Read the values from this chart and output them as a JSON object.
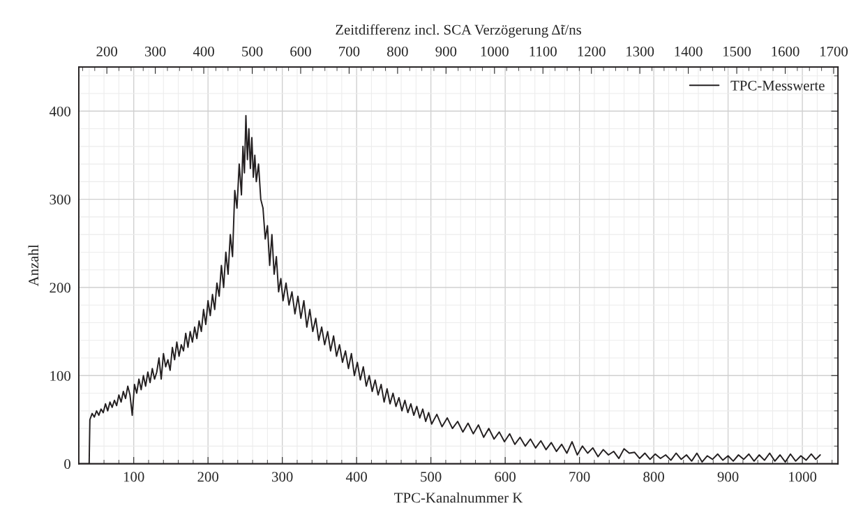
{
  "chart_data": {
    "type": "line",
    "xlabel": "TPC-Kanalnummer K",
    "ylabel": "Anzahl",
    "x2label": "Zeitdifferenz incl. SCA Verzögerung Δ̃t/ns",
    "xlim": [
      26,
      1048
    ],
    "ylim": [
      0,
      450
    ],
    "x2lim": [
      142,
      1709
    ],
    "xticks": [
      100,
      200,
      300,
      400,
      500,
      600,
      700,
      800,
      900,
      1000
    ],
    "yticks": [
      0,
      100,
      200,
      300,
      400
    ],
    "x2ticks": [
      200,
      300,
      400,
      500,
      600,
      700,
      800,
      900,
      1000,
      1100,
      1200,
      1300,
      1400,
      1500,
      1600,
      1700
    ],
    "grid": true,
    "legend": "top right",
    "line_style": "solid",
    "marker": "none",
    "series": [
      {
        "name": "TPC-Messwerte",
        "color": "#231f20",
        "x": [
          26,
          36,
          40,
          41,
          44,
          47,
          50,
          53,
          56,
          59,
          62,
          65,
          68,
          71,
          74,
          77,
          80,
          83,
          86,
          89,
          92,
          95,
          98,
          101,
          104,
          107,
          110,
          113,
          116,
          119,
          122,
          125,
          128,
          131,
          134,
          137,
          140,
          143,
          146,
          149,
          152,
          155,
          158,
          161,
          164,
          167,
          170,
          173,
          176,
          179,
          182,
          185,
          188,
          191,
          194,
          197,
          200,
          203,
          206,
          209,
          212,
          215,
          218,
          221,
          224,
          227,
          230,
          233,
          236,
          239,
          242,
          245,
          247,
          249,
          251,
          253,
          255,
          257,
          259,
          261,
          263,
          265,
          268,
          271,
          274,
          277,
          280,
          283,
          286,
          289,
          292,
          295,
          298,
          301,
          305,
          309,
          313,
          317,
          321,
          325,
          329,
          333,
          337,
          341,
          345,
          349,
          353,
          357,
          361,
          365,
          369,
          373,
          377,
          381,
          385,
          389,
          393,
          397,
          401,
          405,
          409,
          413,
          417,
          421,
          425,
          429,
          433,
          437,
          441,
          445,
          449,
          453,
          457,
          461,
          465,
          469,
          473,
          477,
          481,
          485,
          489,
          493,
          497,
          501,
          508,
          515,
          522,
          529,
          536,
          543,
          550,
          557,
          564,
          571,
          578,
          585,
          592,
          599,
          606,
          613,
          620,
          627,
          634,
          641,
          648,
          655,
          662,
          669,
          676,
          683,
          690,
          697,
          704,
          711,
          718,
          725,
          732,
          739,
          746,
          753,
          760,
          767,
          774,
          781,
          788,
          795,
          802,
          809,
          816,
          823,
          830,
          837,
          844,
          851,
          858,
          865,
          872,
          879,
          886,
          893,
          900,
          907,
          914,
          921,
          928,
          935,
          942,
          949,
          956,
          963,
          970,
          977,
          984,
          991,
          998,
          1005,
          1012,
          1018,
          1024
        ],
        "values": [
          0,
          0,
          0,
          50,
          57,
          53,
          60,
          55,
          62,
          58,
          68,
          60,
          70,
          64,
          72,
          66,
          78,
          70,
          82,
          74,
          88,
          78,
          55,
          90,
          80,
          96,
          84,
          100,
          88,
          104,
          92,
          108,
          96,
          104,
          120,
          96,
          125,
          110,
          118,
          106,
          132,
          118,
          138,
          122,
          135,
          128,
          148,
          132,
          150,
          138,
          155,
          142,
          162,
          150,
          175,
          158,
          185,
          168,
          192,
          175,
          205,
          190,
          225,
          200,
          240,
          215,
          260,
          235,
          310,
          290,
          340,
          305,
          360,
          330,
          395,
          345,
          380,
          335,
          370,
          325,
          350,
          320,
          340,
          300,
          290,
          255,
          270,
          225,
          260,
          215,
          235,
          195,
          210,
          185,
          205,
          180,
          195,
          170,
          190,
          165,
          185,
          155,
          175,
          150,
          165,
          140,
          155,
          135,
          150,
          128,
          145,
          122,
          135,
          115,
          128,
          108,
          125,
          100,
          115,
          95,
          110,
          88,
          100,
          82,
          95,
          78,
          90,
          70,
          85,
          68,
          80,
          65,
          75,
          60,
          72,
          58,
          68,
          55,
          65,
          52,
          62,
          48,
          58,
          45,
          56,
          42,
          52,
          40,
          48,
          36,
          46,
          34,
          44,
          30,
          40,
          28,
          36,
          25,
          34,
          22,
          30,
          20,
          28,
          18,
          26,
          16,
          24,
          14,
          22,
          12,
          25,
          10,
          20,
          12,
          18,
          8,
          16,
          10,
          14,
          6,
          17,
          12,
          13,
          6,
          12,
          5,
          11,
          6,
          10,
          4,
          12,
          5,
          10,
          3,
          12,
          2,
          9,
          5,
          11,
          4,
          9,
          3,
          10,
          5,
          11,
          3,
          10,
          4,
          12,
          3,
          10,
          2,
          11,
          3,
          9,
          4,
          11,
          5,
          10
        ]
      }
    ]
  }
}
